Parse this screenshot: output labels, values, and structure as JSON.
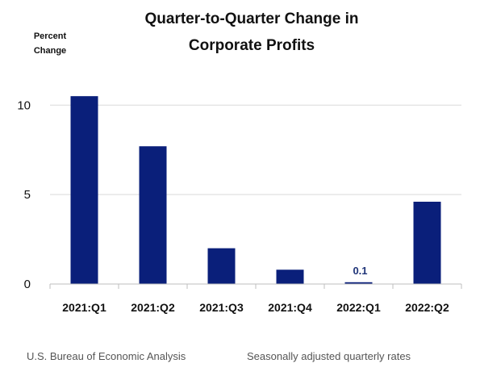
{
  "chart_data": {
    "type": "bar",
    "title_line1": "Quarter-to-Quarter Change in",
    "title_line2": "Corporate Profits",
    "ylabel_line1": "Percent",
    "ylabel_line2": "Change",
    "categories": [
      "2021:Q1",
      "2021:Q2",
      "2021:Q3",
      "2021:Q4",
      "2022:Q1",
      "2022:Q2"
    ],
    "values": [
      10.5,
      7.7,
      2.0,
      0.8,
      0.1,
      4.6
    ],
    "data_labels": [
      "",
      "",
      "",
      "",
      "0.1",
      ""
    ],
    "ylim": [
      0,
      11.5
    ],
    "yticks": [
      "0",
      "5",
      "10"
    ],
    "grid": true,
    "bar_color": "#0a1f7a",
    "label_color": "#1f3478",
    "grid_color": "#d9d9d9"
  },
  "footer": {
    "source": "U.S. Bureau of Economic Analysis",
    "note": "Seasonally adjusted quarterly rates"
  }
}
